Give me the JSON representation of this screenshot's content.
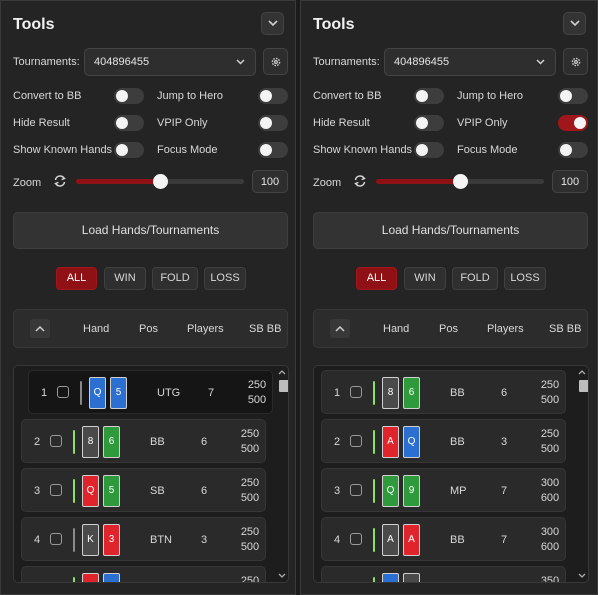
{
  "colors": {
    "accent": "#8f1116",
    "result_positive": "#8ee060",
    "result_neutral": "#8a8a8a",
    "card_red": "#e0242c",
    "card_blue": "#2b6fd0",
    "card_green": "#2f9a3c",
    "card_gray": "#4a4a4a"
  },
  "icons": {
    "collapse": "chevron-down-icon",
    "settings": "gear-icon",
    "zoom_reset": "refresh-icon",
    "sort": "chevron-up-icon"
  },
  "panels": [
    {
      "title": "Tools",
      "tournament_label": "Tournaments:",
      "tournament_value": "404896455",
      "options": [
        {
          "label": "Convert to BB",
          "on": false
        },
        {
          "label": "Jump to Hero",
          "on": false
        },
        {
          "label": "Hide Result",
          "on": false
        },
        {
          "label": "VPIP Only",
          "on": false
        },
        {
          "label": "Show Known Hands",
          "on": false
        },
        {
          "label": "Focus Mode",
          "on": false
        }
      ],
      "zoom_label": "Zoom",
      "zoom_value": "100",
      "zoom_level": 0.5,
      "load_label": "Load Hands/Tournaments",
      "filters": [
        {
          "label": "ALL",
          "active": true
        },
        {
          "label": "WIN",
          "active": false
        },
        {
          "label": "FOLD",
          "active": false
        },
        {
          "label": "LOSS",
          "active": false
        }
      ],
      "columns": [
        "Hand",
        "Pos",
        "Players",
        "SB BB"
      ],
      "rows": [
        {
          "index": "1",
          "result": "neutral",
          "cards": [
            {
              "rank": "Q",
              "color": "blue"
            },
            {
              "rank": "5",
              "color": "blue"
            }
          ],
          "pos": "UTG",
          "players": "7",
          "sb": "250",
          "bb": "500",
          "selected": true
        },
        {
          "index": "2",
          "result": "positive",
          "cards": [
            {
              "rank": "8",
              "color": "gray"
            },
            {
              "rank": "6",
              "color": "green"
            }
          ],
          "pos": "BB",
          "players": "6",
          "sb": "250",
          "bb": "500",
          "selected": false
        },
        {
          "index": "3",
          "result": "positive",
          "cards": [
            {
              "rank": "Q",
              "color": "red"
            },
            {
              "rank": "5",
              "color": "green"
            }
          ],
          "pos": "SB",
          "players": "6",
          "sb": "250",
          "bb": "500",
          "selected": false
        },
        {
          "index": "4",
          "result": "neutral",
          "cards": [
            {
              "rank": "K",
              "color": "gray"
            },
            {
              "rank": "3",
              "color": "red"
            }
          ],
          "pos": "BTN",
          "players": "3",
          "sb": "250",
          "bb": "500",
          "selected": false
        },
        {
          "index": "",
          "result": "positive",
          "cards": [
            {
              "rank": "",
              "color": "red"
            },
            {
              "rank": "",
              "color": "blue"
            }
          ],
          "pos": "",
          "players": "",
          "sb": "250",
          "bb": "",
          "selected": false
        }
      ]
    },
    {
      "title": "Tools",
      "tournament_label": "Tournaments:",
      "tournament_value": "404896455",
      "options": [
        {
          "label": "Convert to BB",
          "on": false
        },
        {
          "label": "Jump to Hero",
          "on": false
        },
        {
          "label": "Hide Result",
          "on": false
        },
        {
          "label": "VPIP Only",
          "on": true
        },
        {
          "label": "Show Known Hands",
          "on": false
        },
        {
          "label": "Focus Mode",
          "on": false
        }
      ],
      "zoom_label": "Zoom",
      "zoom_value": "100",
      "zoom_level": 0.5,
      "load_label": "Load Hands/Tournaments",
      "filters": [
        {
          "label": "ALL",
          "active": true
        },
        {
          "label": "WIN",
          "active": false
        },
        {
          "label": "FOLD",
          "active": false
        },
        {
          "label": "LOSS",
          "active": false
        }
      ],
      "columns": [
        "Hand",
        "Pos",
        "Players",
        "SB BB"
      ],
      "rows": [
        {
          "index": "1",
          "result": "positive",
          "cards": [
            {
              "rank": "8",
              "color": "gray"
            },
            {
              "rank": "6",
              "color": "green"
            }
          ],
          "pos": "BB",
          "players": "6",
          "sb": "250",
          "bb": "500",
          "selected": false
        },
        {
          "index": "2",
          "result": "positive",
          "cards": [
            {
              "rank": "A",
              "color": "red"
            },
            {
              "rank": "Q",
              "color": "blue"
            }
          ],
          "pos": "BB",
          "players": "3",
          "sb": "250",
          "bb": "500",
          "selected": false
        },
        {
          "index": "3",
          "result": "positive",
          "cards": [
            {
              "rank": "Q",
              "color": "green"
            },
            {
              "rank": "9",
              "color": "green"
            }
          ],
          "pos": "MP",
          "players": "7",
          "sb": "300",
          "bb": "600",
          "selected": false
        },
        {
          "index": "4",
          "result": "positive",
          "cards": [
            {
              "rank": "A",
              "color": "gray"
            },
            {
              "rank": "A",
              "color": "red"
            }
          ],
          "pos": "BB",
          "players": "7",
          "sb": "300",
          "bb": "600",
          "selected": false
        },
        {
          "index": "",
          "result": "positive",
          "cards": [
            {
              "rank": "",
              "color": "blue"
            },
            {
              "rank": "",
              "color": "gray"
            }
          ],
          "pos": "",
          "players": "",
          "sb": "350",
          "bb": "",
          "selected": false
        }
      ]
    }
  ]
}
